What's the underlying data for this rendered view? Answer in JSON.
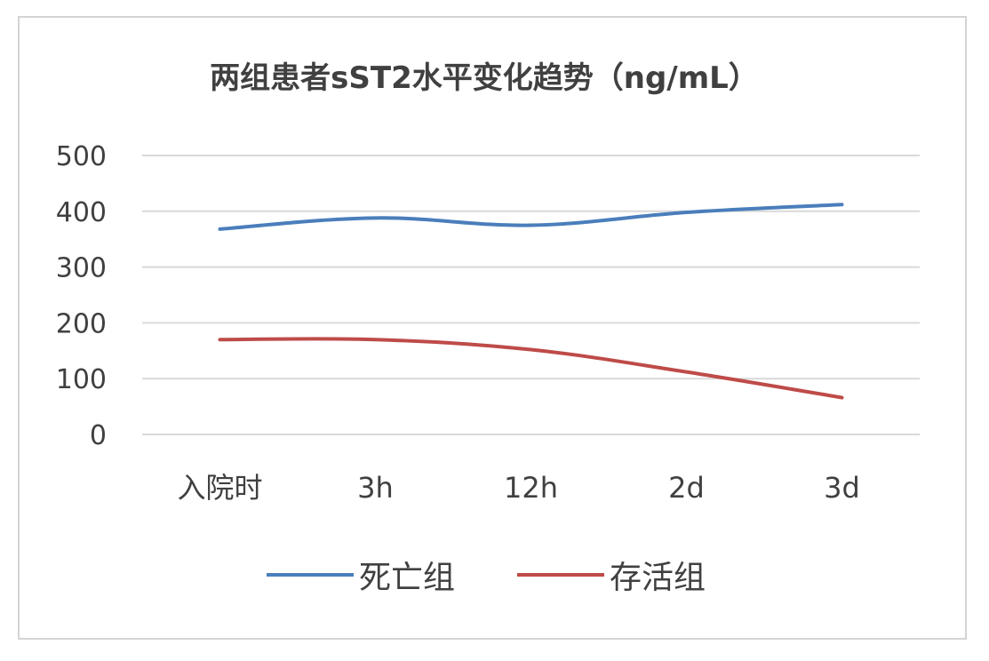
{
  "chart_data": {
    "type": "line",
    "title": "两组患者sST2水平变化趋势（ng/mL）",
    "categories": [
      "入院时",
      "3h",
      "12h",
      "2d",
      "3d"
    ],
    "series": [
      {
        "name": "死亡组",
        "color": "#4a7ebb",
        "values": [
          368,
          388,
          375,
          398,
          412
        ]
      },
      {
        "name": "存活组",
        "color": "#be4b48",
        "values": [
          170,
          170,
          152,
          112,
          66
        ]
      }
    ],
    "ylim": [
      0,
      500
    ],
    "yticks": [
      0,
      100,
      200,
      300,
      400,
      500
    ],
    "grid": true,
    "legend_position": "bottom",
    "xlabel": "",
    "ylabel": ""
  }
}
